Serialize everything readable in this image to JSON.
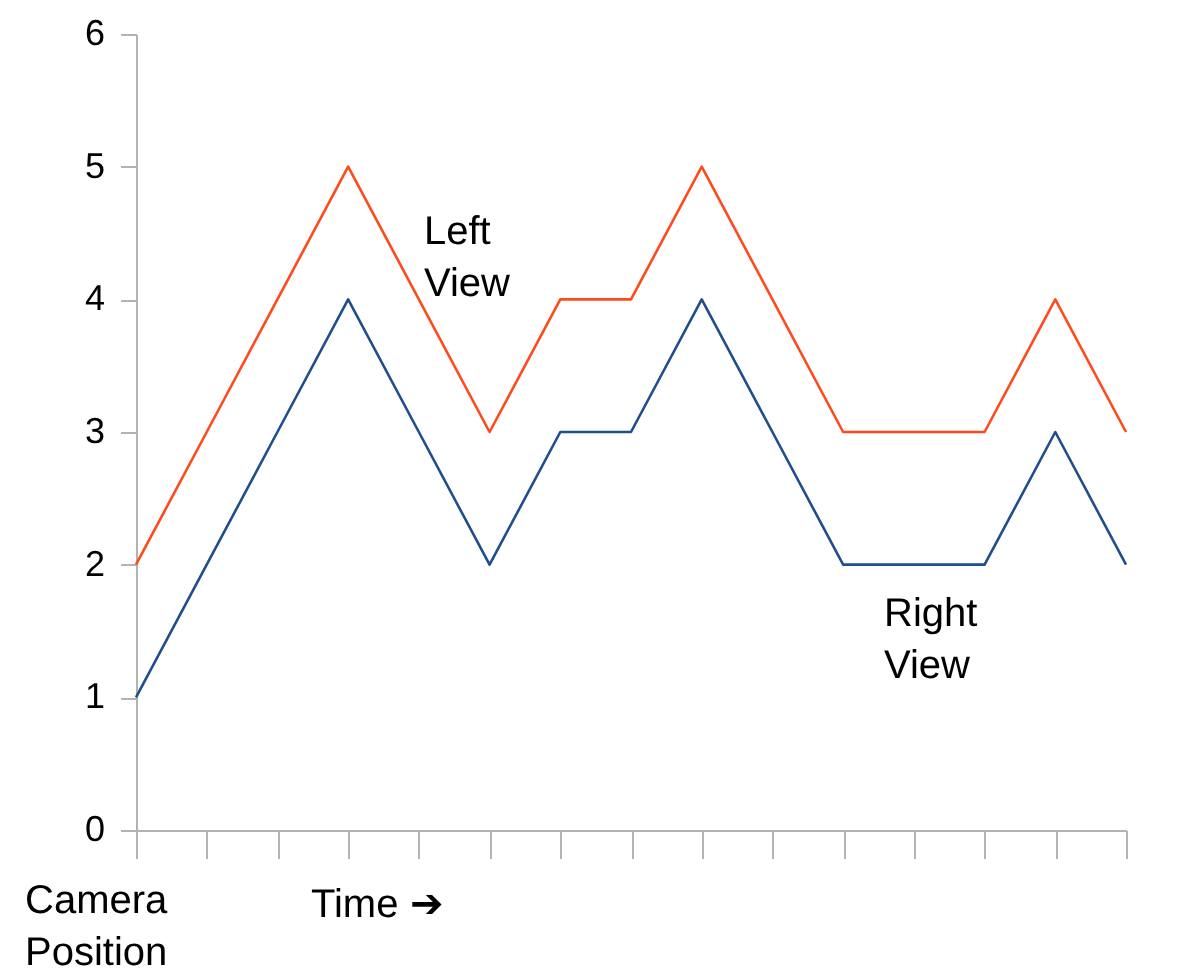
{
  "chart_data": {
    "type": "line",
    "xlabel": "Time ➔",
    "ylabel": "Camera Position",
    "categories": [
      null,
      null,
      null,
      null,
      null,
      null,
      null,
      null,
      null,
      null,
      null,
      null,
      null,
      null,
      null
    ],
    "series": [
      {
        "color": "#ff4a1c",
        "values": [
          2,
          3,
          4,
          5,
          4,
          3,
          4,
          4,
          5,
          4,
          3,
          3,
          3,
          4,
          3
        ]
      },
      {
        "color": "#1f4e8c",
        "values": [
          1,
          2,
          3,
          4,
          3,
          2,
          3,
          3,
          4,
          3,
          2,
          2,
          2,
          3,
          2
        ]
      }
    ],
    "ylim": [
      0,
      6
    ],
    "yticks": [
      0,
      1,
      2,
      3,
      4,
      5,
      6
    ],
    "tick_labels": "y",
    "grid": false,
    "marker": "none",
    "line_style": "solid",
    "annotations": [
      "Left View",
      "Right View"
    ]
  }
}
